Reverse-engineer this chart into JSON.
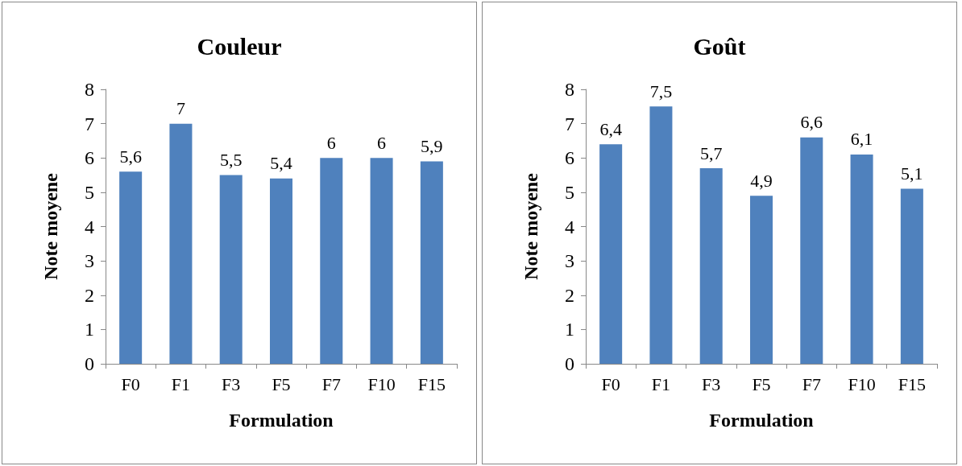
{
  "chart_data": [
    {
      "type": "bar",
      "title": "Couleur",
      "xlabel": "Formulation",
      "ylabel": "Note moyene",
      "categories": [
        "F0",
        "F1",
        "F3",
        "F5",
        "F7",
        "F10",
        "F15"
      ],
      "values": [
        5.6,
        7,
        5.5,
        5.4,
        6,
        6,
        5.9
      ],
      "value_labels": [
        "5,6",
        "7",
        "5,5",
        "5,4",
        "6",
        "6",
        "5,9"
      ],
      "color": "#4f81bd",
      "ylim": [
        0,
        8
      ],
      "yticks": [
        0,
        1,
        2,
        3,
        4,
        5,
        6,
        7,
        8
      ],
      "grid": false
    },
    {
      "type": "bar",
      "title": "Goût",
      "xlabel": "Formulation",
      "ylabel": "Note moyene",
      "categories": [
        "F0",
        "F1",
        "F3",
        "F5",
        "F7",
        "F10",
        "F15"
      ],
      "values": [
        6.4,
        7.5,
        5.7,
        4.9,
        6.6,
        6.1,
        5.1
      ],
      "value_labels": [
        "6,4",
        "7,5",
        "5,7",
        "4,9",
        "6,6",
        "6,1",
        "5,1"
      ],
      "color": "#4f81bd",
      "ylim": [
        0,
        8
      ],
      "yticks": [
        0,
        1,
        2,
        3,
        4,
        5,
        6,
        7,
        8
      ],
      "grid": false
    }
  ]
}
